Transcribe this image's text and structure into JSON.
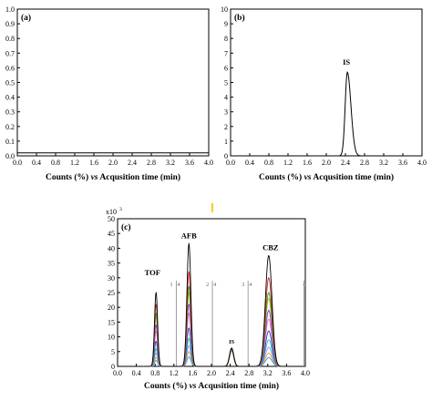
{
  "chart_data": [
    {
      "type": "line",
      "panel_label": "(a)",
      "xlabel_parts": [
        "Counts (%) ",
        "vs",
        " Acqusition time (min)"
      ],
      "xlim": [
        0.0,
        4.0
      ],
      "ylim": [
        0.0,
        1.0
      ],
      "xticks": [
        "0.0",
        "0.4",
        "0.8",
        "1.2",
        "1.6",
        "2.0",
        "2.4",
        "2.8",
        "3.2",
        "3.6",
        "4.0"
      ],
      "yticks": [
        "0.0",
        "0.1",
        "0.2",
        "0.3",
        "0.4",
        "0.5",
        "0.6",
        "0.7",
        "0.8",
        "0.9",
        "1.0"
      ],
      "series": [
        {
          "color": "#000000",
          "x": [
            0.0,
            4.0
          ],
          "y": [
            0.02,
            0.02
          ]
        }
      ]
    },
    {
      "type": "line",
      "panel_label": "(b)",
      "xlabel_parts": [
        "Counts (%) ",
        "vs",
        " Acqusition time (min)"
      ],
      "xlim": [
        0.0,
        4.0
      ],
      "ylim": [
        0,
        10
      ],
      "xticks": [
        "0.0",
        "0.4",
        "0.8",
        "1.2",
        "1.6",
        "2.0",
        "2.4",
        "2.8",
        "3.2",
        "3.6",
        "4.0"
      ],
      "yticks": [
        "0",
        "1",
        "2",
        "3",
        "4",
        "5",
        "6",
        "7",
        "8",
        "9",
        "10"
      ],
      "peaks": [
        {
          "label": "IS",
          "center": 2.44,
          "height": 5.7,
          "left_sigma": 0.045,
          "right_sigma": 0.075
        }
      ],
      "series": [
        {
          "color": "#000000"
        }
      ]
    },
    {
      "type": "line",
      "panel_label": "(c)",
      "y_multiplier": "x10",
      "y_multiplier_exp": "3",
      "xlabel_parts": [
        "Counts (%) ",
        "vs",
        " Acqusition time (min)"
      ],
      "xlim": [
        0.0,
        4.0
      ],
      "ylim": [
        0,
        50
      ],
      "xticks": [
        "0.0",
        "0.4",
        "0.8",
        "1.2",
        "1.6",
        "2.0",
        "2.4",
        "2.8",
        "3.2",
        "3.6",
        "4.0"
      ],
      "yticks": [
        "0",
        "5",
        "10",
        "15",
        "20",
        "25",
        "30",
        "35",
        "40",
        "45",
        "50"
      ],
      "segment_lines": [
        {
          "x": 1.25,
          "labels": [
            "1",
            "4"
          ]
        },
        {
          "x": 2.02,
          "labels": [
            "2",
            "4"
          ]
        },
        {
          "x": 2.78,
          "labels": [
            "3",
            "4"
          ]
        },
        {
          "x": 3.97,
          "labels": [
            "4"
          ]
        }
      ],
      "peaks": [
        {
          "label": "TOF",
          "center": 0.82,
          "sigma": 0.033,
          "show_label": true
        },
        {
          "label": "AFB",
          "center": 1.52,
          "sigma": 0.042,
          "show_label": true
        },
        {
          "label": "IS",
          "center": 2.43,
          "sigma": 0.045,
          "show_label": true
        },
        {
          "label": "CBZ",
          "center": 3.22,
          "sigma": 0.07,
          "show_label": true
        }
      ],
      "series": [
        {
          "color": "#000000",
          "heights": [
            25,
            41.5,
            6.2,
            37.5
          ]
        },
        {
          "color": "#cc2222",
          "heights": [
            21,
            32,
            6.0,
            30
          ]
        },
        {
          "color": "#22aa22",
          "heights": [
            18,
            27,
            5.9,
            25
          ]
        },
        {
          "color": "#bbbb22",
          "heights": [
            17,
            25,
            5.8,
            23
          ]
        },
        {
          "color": "#8a2be2",
          "heights": [
            14,
            21,
            5.8,
            19
          ]
        },
        {
          "color": "#ff66cc",
          "heights": [
            12,
            18,
            5.7,
            16
          ]
        },
        {
          "color": "#1f3fbf",
          "heights": [
            8.5,
            13,
            5.6,
            12
          ]
        },
        {
          "color": "#22bbbb",
          "heights": [
            6,
            9.5,
            5.5,
            9
          ]
        },
        {
          "color": "#7fa0ff",
          "heights": [
            4.5,
            7,
            5.4,
            6.5
          ]
        },
        {
          "color": "#ff9900",
          "heights": [
            3,
            5,
            5.3,
            4.5
          ]
        },
        {
          "color": "#3399ff",
          "heights": [
            2,
            3.2,
            5.2,
            3
          ]
        }
      ]
    }
  ],
  "stray_mark_color": "#ffcc00"
}
